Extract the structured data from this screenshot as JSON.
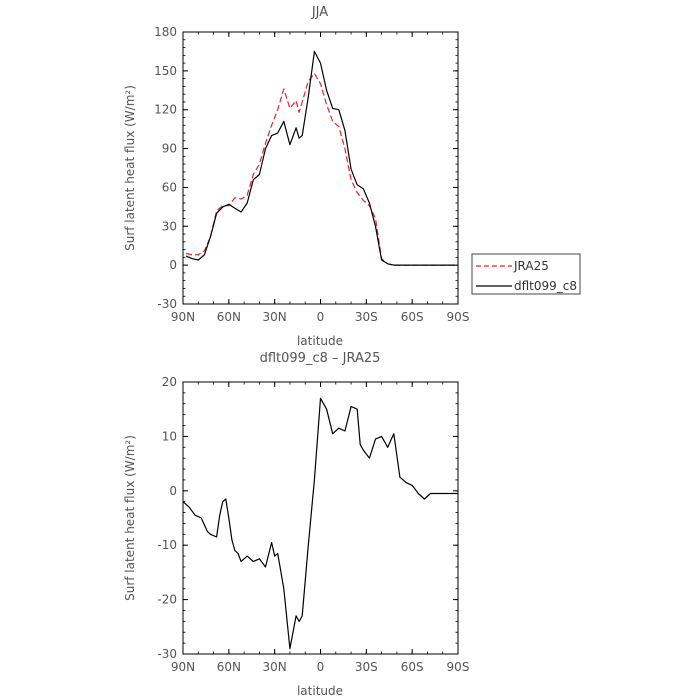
{
  "chart_data": [
    {
      "type": "line",
      "title": "JJA",
      "xlabel": "latitude",
      "ylabel": "Surf latent heat flux (W/m²)",
      "xlim": [
        90,
        -90
      ],
      "ylim": [
        -30,
        180
      ],
      "xticks": [
        90,
        60,
        30,
        0,
        -30,
        -60,
        -90
      ],
      "xtick_labels": [
        "90N",
        "60N",
        "30N",
        "0",
        "30S",
        "60S",
        "90S"
      ],
      "yticks": [
        -30,
        0,
        30,
        60,
        90,
        120,
        150,
        180
      ],
      "ytick_labels": [
        "-30",
        "0",
        "30",
        "60",
        "90",
        "120",
        "150",
        "180"
      ],
      "legend": {
        "position": "right"
      },
      "series": [
        {
          "name": "JRA25",
          "color": "#e8212b",
          "dash": "dashed",
          "x": [
            88,
            84,
            80,
            76,
            72,
            68,
            64,
            60,
            56,
            52,
            48,
            44,
            40,
            36,
            32,
            28,
            24,
            20,
            16,
            14,
            12,
            8,
            4,
            0,
            -4,
            -8,
            -12,
            -16,
            -20,
            -24,
            -28,
            -32,
            -36,
            -40,
            -44,
            -48,
            -52,
            -56,
            -60,
            -64,
            -68,
            -72,
            -76,
            -80,
            -84,
            -88
          ],
          "y": [
            9,
            8,
            8,
            11,
            22,
            42,
            46,
            46,
            52,
            51,
            54,
            70,
            78,
            94,
            108,
            120,
            136,
            121,
            127,
            118,
            126,
            142,
            148,
            140,
            124,
            111,
            107,
            90,
            66,
            56,
            50,
            46,
            36,
            5,
            1,
            0,
            0,
            0,
            0,
            0,
            0,
            0,
            0,
            0,
            0,
            0
          ]
        },
        {
          "name": "dflt099_c8",
          "color": "#000000",
          "dash": "solid",
          "x": [
            88,
            84,
            80,
            76,
            72,
            68,
            64,
            60,
            56,
            52,
            48,
            44,
            40,
            36,
            32,
            28,
            24,
            20,
            16,
            14,
            12,
            8,
            4,
            0,
            -4,
            -8,
            -12,
            -16,
            -20,
            -24,
            -28,
            -32,
            -36,
            -40,
            -44,
            -48,
            -52,
            -56,
            -60,
            -64,
            -68,
            -72,
            -76,
            -80,
            -84,
            -88
          ],
          "y": [
            7,
            5,
            4,
            8,
            22,
            40,
            45,
            47,
            44,
            41,
            48,
            66,
            70,
            90,
            100,
            102,
            111,
            93,
            106,
            98,
            100,
            130,
            165,
            156,
            135,
            121,
            120,
            104,
            74,
            62,
            59,
            48,
            30,
            4,
            1,
            0,
            0,
            0,
            0,
            0,
            0,
            0,
            0,
            0,
            0,
            0
          ]
        }
      ]
    },
    {
      "type": "line",
      "title": "dflt099_c8 – JRA25",
      "xlabel": "latitude",
      "ylabel": "Surf latent heat flux (W/m²)",
      "xlim": [
        90,
        -90
      ],
      "ylim": [
        -30,
        20
      ],
      "xticks": [
        90,
        60,
        30,
        0,
        -30,
        -60,
        -90
      ],
      "xtick_labels": [
        "90N",
        "60N",
        "30N",
        "0",
        "30S",
        "60S",
        "90S"
      ],
      "yticks": [
        -30,
        -20,
        -10,
        0,
        10,
        20
      ],
      "ytick_labels": [
        "-30",
        "-20",
        "-10",
        "0",
        "10",
        "20"
      ],
      "series": [
        {
          "name": "",
          "color": "#000000",
          "dash": "solid",
          "x": [
            90,
            86,
            82,
            78,
            74,
            72,
            68,
            66,
            64,
            62,
            60,
            58,
            56,
            54,
            52,
            48,
            44,
            40,
            36,
            32,
            30,
            28,
            24,
            20,
            16,
            14,
            12,
            8,
            4,
            0,
            -4,
            -8,
            -12,
            -16,
            -20,
            -24,
            -26,
            -28,
            -32,
            -36,
            -40,
            -44,
            -48,
            -52,
            -56,
            -60,
            -64,
            -68,
            -72,
            -76,
            -80,
            -84,
            -88,
            -90
          ],
          "y": [
            -2,
            -3,
            -4.5,
            -5,
            -7.5,
            -8,
            -8.5,
            -4.5,
            -2,
            -1.5,
            -5,
            -9,
            -11,
            -11.5,
            -13,
            -12,
            -13,
            -12.5,
            -14,
            -9.5,
            -12,
            -11.5,
            -18,
            -29,
            -23,
            -24,
            -23,
            -10,
            2,
            17,
            15,
            10.5,
            11.5,
            11,
            15.5,
            15,
            8.5,
            7.5,
            6,
            9.5,
            10,
            8,
            10.5,
            2.5,
            1.5,
            1,
            -0.5,
            -1.5,
            -0.5,
            -0.5,
            -0.5,
            -0.5,
            -0.5,
            -0.5
          ]
        }
      ]
    }
  ]
}
